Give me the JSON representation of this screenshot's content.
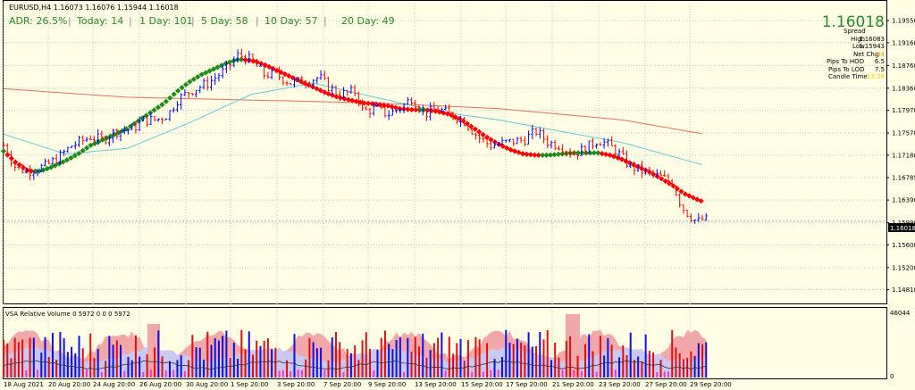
{
  "header": {
    "symbol": "EURUSD,H4",
    "ohlc": "1.16073 1.16076 1.15944 1.16018",
    "adr_label": "ADR:",
    "adr_value": "26.5%",
    "today_label": "Today:",
    "today_value": "14",
    "day1_label": "1 Day:",
    "day1_value": "101",
    "day5_label": "5 Day:",
    "day5_value": "58",
    "day10_label": "10 Day:",
    "day10_value": "57",
    "day20_label": "20 Day:",
    "day20_value": "49"
  },
  "info_panel": {
    "price": "1.16018",
    "spread_label": "Spread",
    "spread_value": "",
    "high_label": "High",
    "high_value": "1.16083",
    "low_label": "Low",
    "low_value": "1.15943",
    "net_chg_label": "Net Chg",
    "net_chg_value": "-94",
    "pips_hod_label": "Pips To HOD",
    "pips_hod_value": "6.5",
    "pips_lod_label": "Pips To LOD",
    "pips_lod_value": "7.5",
    "candle_time_label": "Candle Time",
    "candle_time_value": "13:26",
    "value_color": "#000000",
    "neg_color": "#ff9900",
    "time_color": "#ffcc00"
  },
  "volume_panel": {
    "label": "VSA Relative Volume 0 5972 0 0 0 5972",
    "max_label": "46044",
    "zero_label": "0"
  },
  "chart_data": {
    "type": "candlestick",
    "price_axis_ticks": [
      "1.19550",
      "1.19160",
      "1.18760",
      "1.18360",
      "1.17970",
      "1.17570",
      "1.17180",
      "1.16785",
      "1.16390",
      "1.15990",
      "1.15600",
      "1.15200",
      "1.14810"
    ],
    "current_price_label": "1.16018",
    "ylim": [
      1.146,
      1.1985
    ],
    "x_labels": [
      "18 Aug 2021",
      "20 Aug 20:00",
      "24 Aug 20:00",
      "26 Aug 20:00",
      "30 Aug 20:00",
      "1 Sep 20:00",
      "3 Sep 20:00",
      "7 Sep 20:00",
      "9 Sep 20:00",
      "13 Sep 20:00",
      "15 Sep 20:00",
      "17 Sep 20:00",
      "21 Sep 20:00",
      "23 Sep 20:00",
      "27 Sep 20:00",
      "29 Sep 20:00"
    ],
    "close_path": [
      [
        0,
        1.1735
      ],
      [
        10,
        1.1695
      ],
      [
        20,
        1.169
      ],
      [
        35,
        1.17
      ],
      [
        45,
        1.1715
      ],
      [
        55,
        1.1735
      ],
      [
        70,
        1.175
      ],
      [
        80,
        1.1745
      ],
      [
        90,
        1.176
      ],
      [
        105,
        1.1765
      ],
      [
        112,
        1.178
      ],
      [
        123,
        1.178
      ],
      [
        133,
        1.179
      ],
      [
        140,
        1.1815
      ],
      [
        150,
        1.183
      ],
      [
        165,
        1.1845
      ],
      [
        180,
        1.187
      ],
      [
        190,
        1.1895
      ],
      [
        200,
        1.1885
      ],
      [
        210,
        1.186
      ],
      [
        220,
        1.186
      ],
      [
        232,
        1.1845
      ],
      [
        245,
        1.185
      ],
      [
        255,
        1.1855
      ],
      [
        263,
        1.1838
      ],
      [
        270,
        1.1825
      ],
      [
        285,
        1.183
      ],
      [
        290,
        1.1795
      ],
      [
        300,
        1.18
      ],
      [
        310,
        1.179
      ],
      [
        320,
        1.18
      ],
      [
        330,
        1.182
      ],
      [
        340,
        1.179
      ],
      [
        350,
        1.18
      ],
      [
        360,
        1.179
      ],
      [
        371,
        1.178
      ],
      [
        383,
        1.175
      ],
      [
        393,
        1.1735
      ],
      [
        405,
        1.174
      ],
      [
        420,
        1.1745
      ],
      [
        430,
        1.176
      ],
      [
        440,
        1.174
      ],
      [
        450,
        1.1735
      ],
      [
        460,
        1.172
      ],
      [
        470,
        1.173
      ],
      [
        480,
        1.1745
      ],
      [
        487,
        1.1738
      ],
      [
        495,
        1.1725
      ],
      [
        505,
        1.17
      ],
      [
        515,
        1.169
      ],
      [
        530,
        1.168
      ],
      [
        540,
        1.167
      ],
      [
        545,
        1.164
      ],
      [
        550,
        1.162
      ],
      [
        555,
        1.161
      ],
      [
        560,
        1.16
      ],
      [
        565,
        1.1605
      ],
      [
        570,
        1.1602
      ]
    ],
    "ma_trend": {
      "points": [
        [
          0,
          1.1725
        ],
        [
          10,
          1.1705
        ],
        [
          20,
          1.169
        ],
        [
          30,
          1.169
        ],
        [
          40,
          1.1698
        ],
        [
          50,
          1.1708
        ],
        [
          60,
          1.172
        ],
        [
          70,
          1.1735
        ],
        [
          80,
          1.1745
        ],
        [
          90,
          1.1755
        ],
        [
          100,
          1.1765
        ],
        [
          110,
          1.178
        ],
        [
          120,
          1.1795
        ],
        [
          130,
          1.181
        ],
        [
          140,
          1.183
        ],
        [
          150,
          1.1847
        ],
        [
          160,
          1.186
        ],
        [
          170,
          1.187
        ],
        [
          180,
          1.188
        ],
        [
          190,
          1.1887
        ],
        [
          200,
          1.1885
        ],
        [
          210,
          1.1878
        ],
        [
          220,
          1.1868
        ],
        [
          230,
          1.1858
        ],
        [
          240,
          1.1848
        ],
        [
          250,
          1.1838
        ],
        [
          260,
          1.1828
        ],
        [
          270,
          1.182
        ],
        [
          280,
          1.1815
        ],
        [
          290,
          1.181
        ],
        [
          300,
          1.1808
        ],
        [
          310,
          1.1805
        ],
        [
          320,
          1.18
        ],
        [
          330,
          1.1798
        ],
        [
          340,
          1.1798
        ],
        [
          350,
          1.1795
        ],
        [
          360,
          1.179
        ],
        [
          370,
          1.178
        ],
        [
          380,
          1.1765
        ],
        [
          390,
          1.175
        ],
        [
          400,
          1.1737
        ],
        [
          410,
          1.1727
        ],
        [
          420,
          1.172
        ],
        [
          430,
          1.1718
        ],
        [
          440,
          1.1718
        ],
        [
          450,
          1.172
        ],
        [
          460,
          1.1722
        ],
        [
          470,
          1.1722
        ],
        [
          480,
          1.1722
        ],
        [
          490,
          1.1718
        ],
        [
          500,
          1.171
        ],
        [
          510,
          1.17
        ],
        [
          520,
          1.169
        ],
        [
          530,
          1.1678
        ],
        [
          540,
          1.1665
        ],
        [
          550,
          1.165
        ],
        [
          560,
          1.164
        ],
        [
          566,
          1.1635
        ]
      ],
      "up_color": "#1a8c1a",
      "down_color": "#ff0000"
    },
    "ma_slow": {
      "points": [
        [
          0,
          1.1835
        ],
        [
          100,
          1.182
        ],
        [
          200,
          1.1815
        ],
        [
          300,
          1.181
        ],
        [
          400,
          1.18
        ],
        [
          500,
          1.178
        ],
        [
          566,
          1.1755
        ]
      ],
      "color": "#e07060"
    },
    "ma_fast": {
      "points": [
        [
          0,
          1.1755
        ],
        [
          50,
          1.172
        ],
        [
          100,
          1.173
        ],
        [
          150,
          1.1775
        ],
        [
          200,
          1.1825
        ],
        [
          250,
          1.1845
        ],
        [
          300,
          1.182
        ],
        [
          350,
          1.1795
        ],
        [
          400,
          1.178
        ],
        [
          450,
          1.176
        ],
        [
          500,
          1.174
        ],
        [
          566,
          1.17
        ]
      ],
      "color": "#66c8dd"
    },
    "colors": {
      "up": "#0000ff",
      "down": "#ff0000",
      "grid": "#c8c8c8",
      "current": "#000000"
    }
  }
}
